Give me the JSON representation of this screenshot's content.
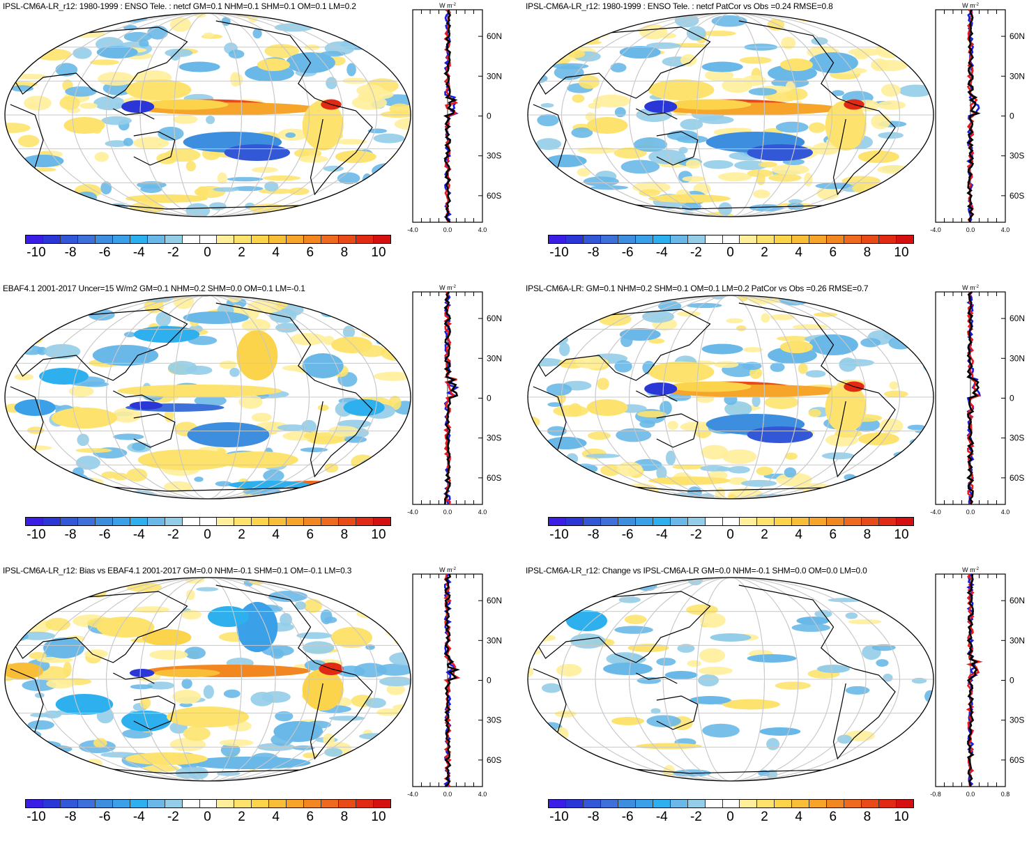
{
  "colorbar": {
    "colors": [
      "#3a1ee6",
      "#2a36d6",
      "#3258d8",
      "#3d70d8",
      "#3e8ee0",
      "#3aa0e8",
      "#2fb0ee",
      "#69b8e8",
      "#94cde8",
      "#ffffff",
      "#ffffff",
      "#ffee9a",
      "#fde36e",
      "#fcd44c",
      "#f8be38",
      "#f6a42a",
      "#f28722",
      "#ee6a1e",
      "#e84a18",
      "#e02a14",
      "#d41010"
    ],
    "labels": [
      "-10",
      "-8",
      "-6",
      "-4",
      "-2",
      "0",
      "2",
      "4",
      "6",
      "8",
      "10"
    ]
  },
  "profile": {
    "unit": "W m",
    "unit_sup": "-2",
    "lat_labels": [
      "60N",
      "30N",
      "0",
      "30S",
      "60S"
    ],
    "series_colors": {
      "model": "#1a1adf",
      "obs": "#e8181c",
      "mean": "#000000"
    }
  },
  "panels": [
    {
      "title": "IPSL-CM6A-LR_r12: 1980-1999 : ENSO Tele. : netcf GM=0.1 NHM=0.1 SHM=0.1 OM=0.1 LM=0.2",
      "xticks": [
        "-4.0",
        "0.0",
        "4.0"
      ],
      "xlim": [
        -4,
        4
      ],
      "pattern": "enso"
    },
    {
      "title": "IPSL-CM6A-LR_r12: 1980-1999 : ENSO Tele. : netcf PatCor vs Obs =0.24 RMSE=0.8",
      "xticks": [
        "-4.0",
        "0.0",
        "4.0"
      ],
      "xlim": [
        -4,
        4
      ],
      "pattern": "enso"
    },
    {
      "title": "EBAF4.1 2001-2017 Uncer=15 W/m2 GM=0.1 NHM=0.2 SHM=0.0 OM=0.1 LM=-0.1",
      "xticks": [
        "-4.0",
        "0.0",
        "4.0"
      ],
      "xlim": [
        -4,
        4
      ],
      "pattern": "obs"
    },
    {
      "title": "IPSL-CM6A-LR: GM=0.1 NHM=0.2 SHM=0.1 OM=0.1 LM=0.2 PatCor vs Obs =0.26 RMSE=0.7",
      "xticks": [
        "-4.0",
        "0.0",
        "4.0"
      ],
      "xlim": [
        -4,
        4
      ],
      "pattern": "enso"
    },
    {
      "title": "IPSL-CM6A-LR_r12: Bias vs EBAF4.1 2001-2017 GM=0.0 NHM=-0.1 SHM=0.1 OM=-0.1 LM=0.3",
      "xticks": [
        "-4.0",
        "0.0",
        "4.0"
      ],
      "xlim": [
        -4,
        4
      ],
      "pattern": "bias"
    },
    {
      "title": "IPSL-CM6A-LR_r12: Change vs IPSL-CM6A-LR GM=0.0 NHM=-0.1 SHM=0.0 OM=0.0 LM=0.0",
      "xticks": [
        "-0.8",
        "0.0",
        "0.8"
      ],
      "xlim": [
        -0.8,
        0.8
      ],
      "pattern": "change"
    }
  ]
}
